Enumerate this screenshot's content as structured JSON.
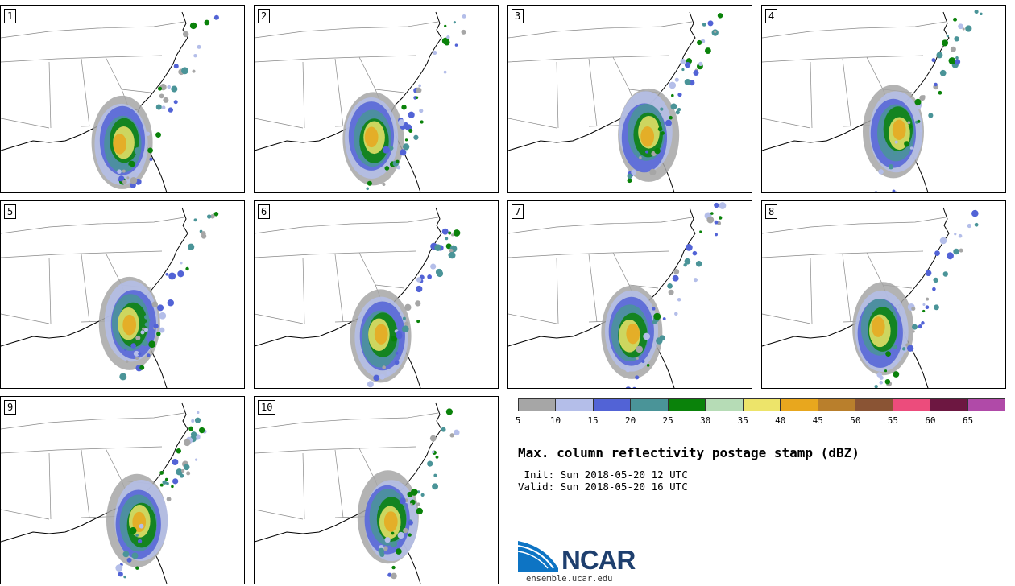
{
  "panels": [
    {
      "label": "1"
    },
    {
      "label": "2"
    },
    {
      "label": "3"
    },
    {
      "label": "4"
    },
    {
      "label": "5"
    },
    {
      "label": "6"
    },
    {
      "label": "7"
    },
    {
      "label": "8"
    },
    {
      "label": "9"
    },
    {
      "label": "10"
    }
  ],
  "colorbar": {
    "colors": [
      "#a6a6a6",
      "#b4bee9",
      "#5263d6",
      "#4a9498",
      "#0a820a",
      "#b6dcb6",
      "#ede46a",
      "#e8a71e",
      "#b97f2c",
      "#8a5434",
      "#ec4c7c",
      "#6d1741",
      "#b04aa8"
    ],
    "ticks": [
      "5",
      "10",
      "15",
      "20",
      "25",
      "30",
      "35",
      "40",
      "45",
      "50",
      "55",
      "60",
      "65"
    ]
  },
  "title": "Max. column reflectivity postage stamp (dBZ)",
  "init_line": " Init: Sun 2018-05-20 12 UTC",
  "valid_line": "Valid: Sun 2018-05-20 16 UTC",
  "logo": {
    "text": "NCAR",
    "url": "ensemble.ucar.edu"
  }
}
